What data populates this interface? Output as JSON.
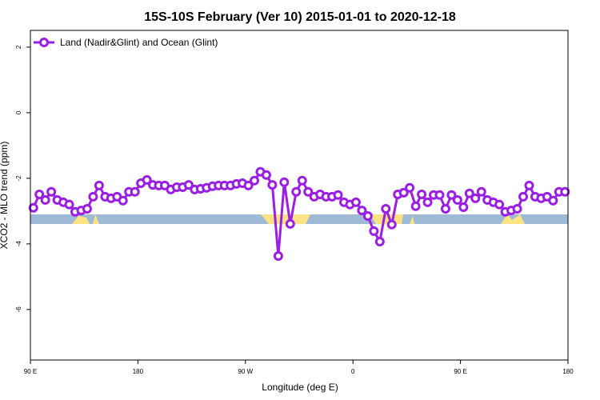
{
  "chart_data": {
    "type": "line",
    "title": "15S-10S February (Ver 10)   2015-01-01 to 2020-12-18",
    "x_label": "Longitude (deg E)",
    "y_label": "XCO2 - MLO trend (ppm)",
    "xlim": [
      90,
      540
    ],
    "ylim": [
      -7.54,
      2.51
    ],
    "xticks": [
      {
        "value": 90,
        "label": "90 E"
      },
      180,
      {
        "value": 270,
        "label": "90 W"
      },
      {
        "value": 360,
        "label": "0"
      },
      {
        "value": 450,
        "label": "90 E"
      },
      {
        "value": 540,
        "label": "180"
      }
    ],
    "yticks": [
      2,
      0,
      -2,
      -4,
      -6
    ],
    "legend": "top-left",
    "x": [
      92.5,
      97.5,
      102.5,
      107.5,
      112.5,
      117.5,
      122.5,
      127.5,
      132.5,
      137.5,
      142.5,
      147.5,
      152.5,
      157.5,
      162.5,
      167.5,
      172.5,
      177.5,
      182.5,
      187.5,
      192.5,
      197.5,
      202.5,
      207.5,
      212.5,
      217.5,
      222.5,
      227.5,
      232.5,
      237.5,
      242.5,
      247.5,
      252.5,
      257.5,
      262.5,
      267.5,
      272.5,
      277.5,
      282.5,
      287.5,
      292.5,
      297.5,
      302.5,
      307.5,
      312.5,
      317.5,
      322.5,
      327.5,
      332.5,
      337.5,
      342.5,
      347.5,
      352.5,
      357.5,
      362.5,
      367.5,
      372.5,
      377.5,
      382.5,
      387.5,
      392.5,
      397.5,
      402.5,
      407.5,
      412.5,
      417.5,
      422.5,
      427.5,
      432.5,
      437.5,
      442.5,
      447.5,
      452.5,
      457.5,
      462.5,
      467.5,
      472.5,
      477.5,
      482.5,
      487.5,
      492.5,
      497.5,
      502.5,
      507.5,
      512.5,
      517.5,
      522.5,
      527.5,
      532.5,
      537.5
    ],
    "series": [
      {
        "name": "Land (Nadir&Glint) and Ocean (Glint)",
        "color": "#9b1fe3",
        "values": [
          -2.9,
          -2.49,
          -2.66,
          -2.41,
          -2.66,
          -2.73,
          -2.8,
          -3.02,
          -2.98,
          -2.93,
          -2.56,
          -2.22,
          -2.56,
          -2.61,
          -2.56,
          -2.68,
          -2.41,
          -2.41,
          -2.15,
          -2.05,
          -2.2,
          -2.22,
          -2.22,
          -2.34,
          -2.27,
          -2.27,
          -2.2,
          -2.34,
          -2.32,
          -2.29,
          -2.24,
          -2.22,
          -2.22,
          -2.22,
          -2.17,
          -2.15,
          -2.22,
          -2.07,
          -1.8,
          -1.9,
          -2.2,
          -4.37,
          -2.12,
          -3.39,
          -2.41,
          -2.07,
          -2.41,
          -2.56,
          -2.49,
          -2.56,
          -2.56,
          -2.51,
          -2.73,
          -2.8,
          -2.73,
          -2.98,
          -3.15,
          -3.61,
          -3.93,
          -2.93,
          -3.41,
          -2.49,
          -2.44,
          -2.29,
          -2.85,
          -2.49,
          -2.73,
          -2.51,
          -2.51,
          -2.93,
          -2.51,
          -2.66,
          -2.88,
          -2.46,
          -2.61,
          -2.41,
          -2.66,
          -2.73,
          -2.8,
          -3.02,
          -2.98,
          -2.93,
          -2.56,
          -2.22,
          -2.56,
          -2.61,
          -2.56,
          -2.68,
          -2.41,
          -2.41
        ]
      }
    ]
  }
}
